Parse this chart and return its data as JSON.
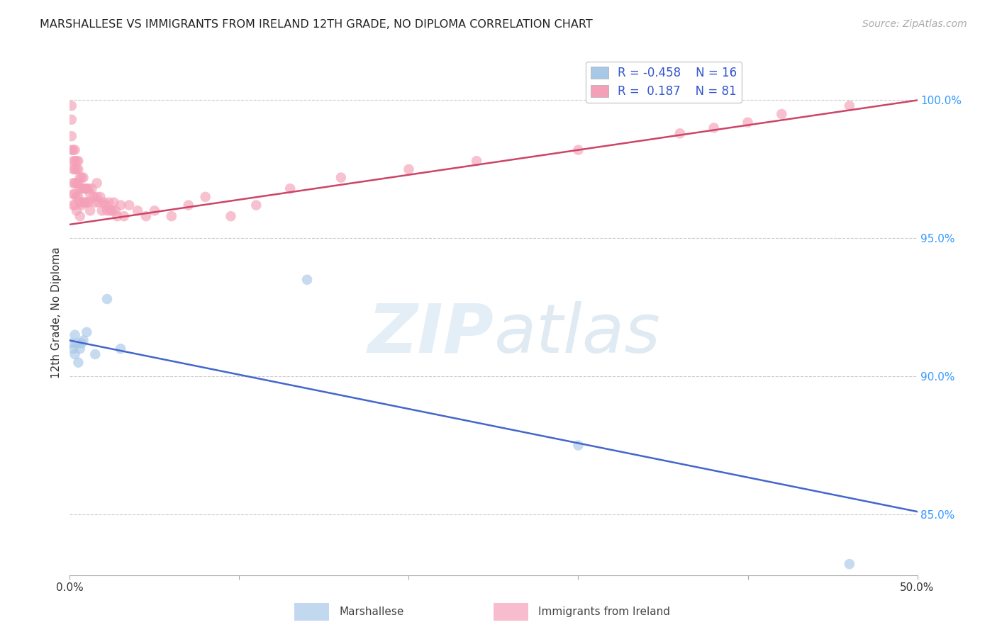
{
  "title": "MARSHALLESE VS IMMIGRANTS FROM IRELAND 12TH GRADE, NO DIPLOMA CORRELATION CHART",
  "source": "Source: ZipAtlas.com",
  "ylabel": "12th Grade, No Diploma",
  "xlim": [
    0.0,
    0.5
  ],
  "ylim": [
    0.828,
    1.018
  ],
  "xticks": [
    0.0,
    0.1,
    0.2,
    0.3,
    0.4,
    0.5
  ],
  "xticklabels": [
    "0.0%",
    "",
    "",
    "",
    "",
    "50.0%"
  ],
  "yticks_right": [
    1.0,
    0.95,
    0.9,
    0.85
  ],
  "ytick_right_labels": [
    "100.0%",
    "95.0%",
    "90.0%",
    "85.0%"
  ],
  "blue_R": -0.458,
  "blue_N": 16,
  "pink_R": 0.187,
  "pink_N": 81,
  "blue_color": "#a8c8e8",
  "pink_color": "#f4a0b8",
  "blue_line_color": "#4466cc",
  "pink_line_color": "#cc4466",
  "background_color": "#ffffff",
  "grid_color": "#cccccc",
  "blue_points_x": [
    0.001,
    0.002,
    0.003,
    0.003,
    0.004,
    0.005,
    0.006,
    0.007,
    0.008,
    0.01,
    0.015,
    0.022,
    0.03,
    0.14,
    0.3,
    0.46
  ],
  "blue_points_y": [
    0.912,
    0.91,
    0.915,
    0.908,
    0.912,
    0.905,
    0.91,
    0.912,
    0.913,
    0.916,
    0.908,
    0.928,
    0.91,
    0.935,
    0.875,
    0.832
  ],
  "pink_points_x": [
    0.001,
    0.001,
    0.001,
    0.001,
    0.002,
    0.002,
    0.002,
    0.002,
    0.002,
    0.002,
    0.003,
    0.003,
    0.003,
    0.003,
    0.003,
    0.003,
    0.004,
    0.004,
    0.004,
    0.004,
    0.004,
    0.005,
    0.005,
    0.005,
    0.005,
    0.006,
    0.006,
    0.006,
    0.006,
    0.007,
    0.007,
    0.007,
    0.008,
    0.008,
    0.008,
    0.009,
    0.009,
    0.01,
    0.01,
    0.011,
    0.011,
    0.012,
    0.012,
    0.013,
    0.014,
    0.015,
    0.016,
    0.016,
    0.017,
    0.018,
    0.019,
    0.02,
    0.021,
    0.022,
    0.023,
    0.024,
    0.025,
    0.026,
    0.027,
    0.028,
    0.03,
    0.032,
    0.035,
    0.04,
    0.045,
    0.05,
    0.06,
    0.07,
    0.08,
    0.095,
    0.11,
    0.13,
    0.16,
    0.2,
    0.24,
    0.3,
    0.36,
    0.38,
    0.4,
    0.42,
    0.46
  ],
  "pink_points_y": [
    0.982,
    0.987,
    0.993,
    0.998,
    0.978,
    0.982,
    0.975,
    0.97,
    0.966,
    0.962,
    0.982,
    0.978,
    0.975,
    0.97,
    0.966,
    0.962,
    0.978,
    0.975,
    0.97,
    0.965,
    0.96,
    0.978,
    0.975,
    0.97,
    0.965,
    0.972,
    0.968,
    0.963,
    0.958,
    0.972,
    0.968,
    0.962,
    0.972,
    0.968,
    0.963,
    0.968,
    0.963,
    0.968,
    0.963,
    0.968,
    0.963,
    0.966,
    0.96,
    0.968,
    0.965,
    0.963,
    0.97,
    0.965,
    0.963,
    0.965,
    0.96,
    0.963,
    0.962,
    0.96,
    0.963,
    0.96,
    0.96,
    0.963,
    0.96,
    0.958,
    0.962,
    0.958,
    0.962,
    0.96,
    0.958,
    0.96,
    0.958,
    0.962,
    0.965,
    0.958,
    0.962,
    0.968,
    0.972,
    0.975,
    0.978,
    0.982,
    0.988,
    0.99,
    0.992,
    0.995,
    0.998
  ],
  "blue_line_x0": 0.0,
  "blue_line_y0": 0.913,
  "blue_line_x1": 0.5,
  "blue_line_y1": 0.851,
  "pink_line_x0": 0.0,
  "pink_line_y0": 0.955,
  "pink_line_x1": 0.5,
  "pink_line_y1": 1.0
}
